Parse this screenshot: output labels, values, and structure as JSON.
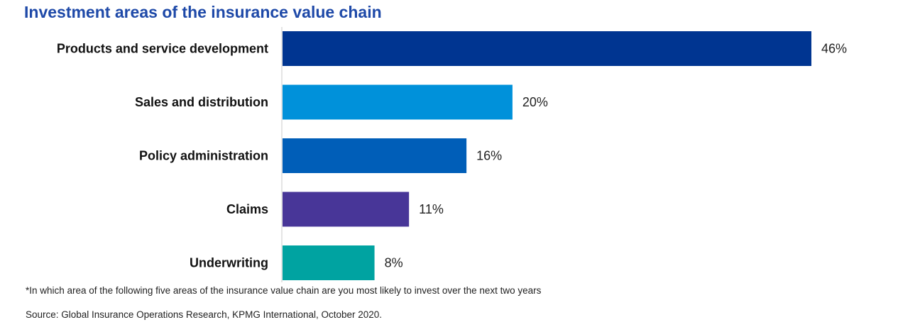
{
  "chart_data": {
    "type": "bar",
    "orientation": "horizontal",
    "title": "Investment areas of the insurance value chain",
    "categories": [
      "Products and service development",
      "Sales and distribution",
      "Policy administration",
      "Claims",
      "Underwriting"
    ],
    "values": [
      46,
      20,
      16,
      11,
      8
    ],
    "value_labels": [
      "46%",
      "20%",
      "16%",
      "11%",
      "8%"
    ],
    "colors": [
      "#003591",
      "#0091DA",
      "#005EB8",
      "#483698",
      "#00A3A1"
    ],
    "unit": "%",
    "xlim": [
      0,
      46
    ],
    "grid": false,
    "legend": "none"
  },
  "footnote": "*In which area of the following five areas of the insurance value chain are you most likely to invest over the next two years",
  "source": "Source: Global Insurance Operations Research, KPMG International, October 2020.",
  "colors": {
    "title": "#1E49A8",
    "axis": "#C8C8C8"
  }
}
